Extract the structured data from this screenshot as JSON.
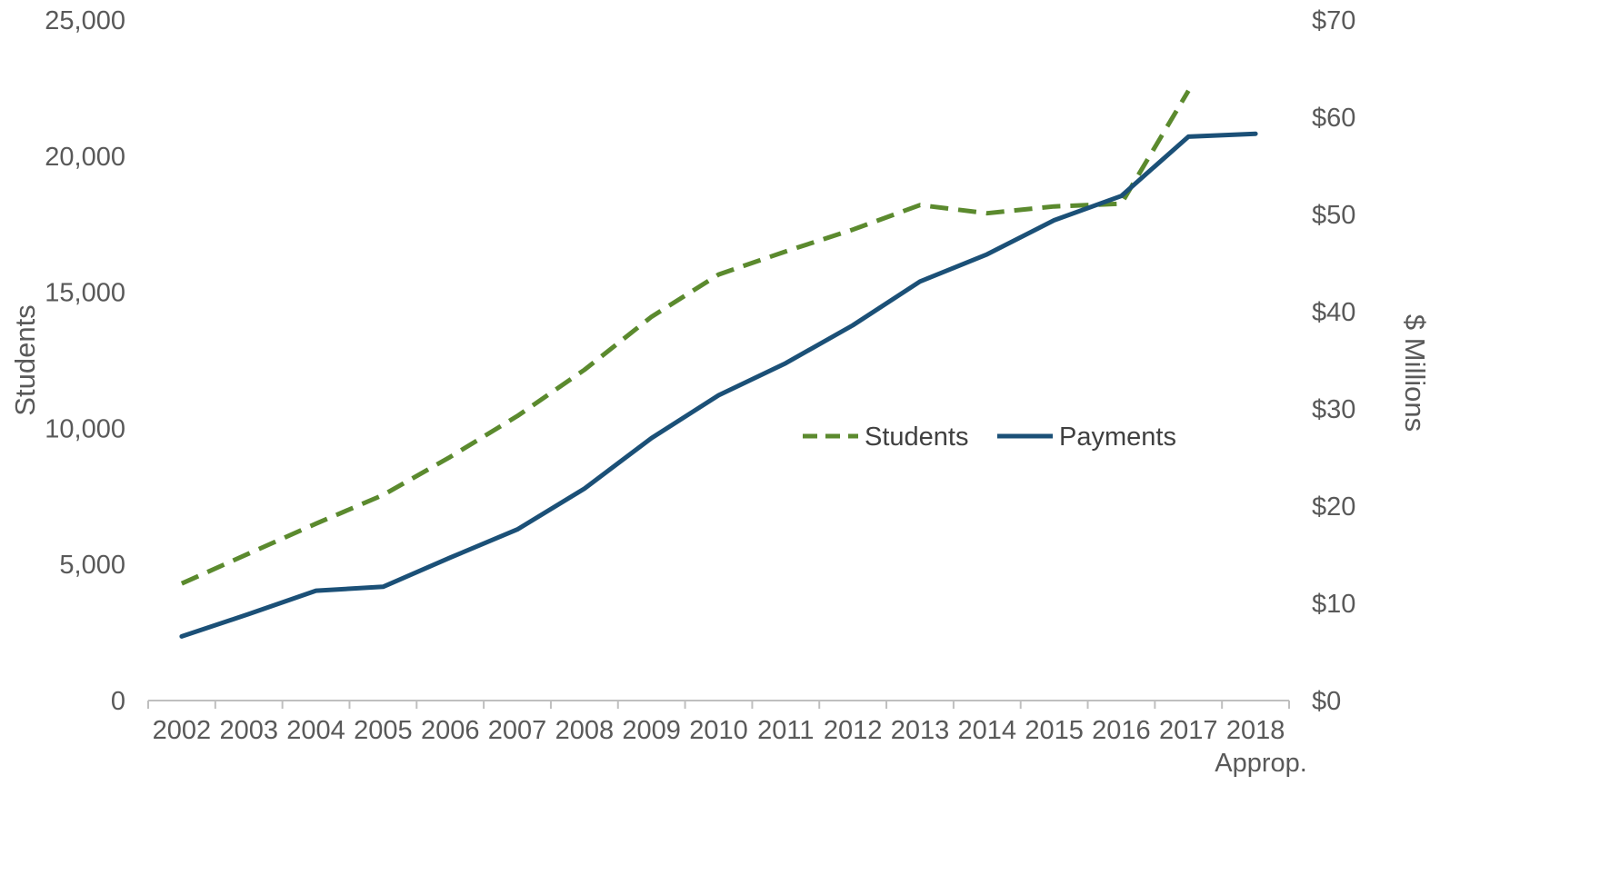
{
  "chart_data": {
    "type": "line",
    "categories": [
      "2002",
      "2003",
      "2004",
      "2005",
      "2006",
      "2007",
      "2008",
      "2009",
      "2010",
      "2011",
      "2012",
      "2013",
      "2014",
      "2015",
      "2016",
      "2017",
      "2018"
    ],
    "category_sublabels": [
      "",
      "",
      "",
      "",
      "",
      "",
      "",
      "",
      "",
      "",
      "",
      "",
      "",
      "",
      "",
      "",
      "Approp."
    ],
    "series": [
      {
        "name": "Students",
        "axis": "left",
        "style": "dashed",
        "color": "#5B8A2E",
        "values": [
          4300,
          5400,
          6500,
          7550,
          8950,
          10450,
          12150,
          14100,
          15650,
          16500,
          17300,
          18200,
          17900,
          18150,
          18250,
          22400,
          null
        ]
      },
      {
        "name": "Payments",
        "axis": "right",
        "style": "solid",
        "color": "#1B5077",
        "values": [
          6.6,
          8.9,
          11.3,
          11.7,
          14.7,
          17.6,
          21.8,
          27.0,
          31.4,
          34.7,
          38.6,
          43.1,
          45.9,
          49.4,
          51.9,
          58.0,
          58.3
        ]
      }
    ],
    "ylabel": "Students",
    "y2label": "$ Millions",
    "ylim": [
      0,
      25000
    ],
    "y2lim": [
      0,
      70
    ],
    "y_ticks": [
      "0",
      "5,000",
      "10,000",
      "15,000",
      "20,000",
      "25,000"
    ],
    "y2_ticks": [
      "$0",
      "$10",
      "$20",
      "$30",
      "$40",
      "$50",
      "$60",
      "$70"
    ],
    "legend": {
      "placement": "center-right",
      "entries": [
        "Students",
        "Payments"
      ]
    },
    "grid": false
  }
}
